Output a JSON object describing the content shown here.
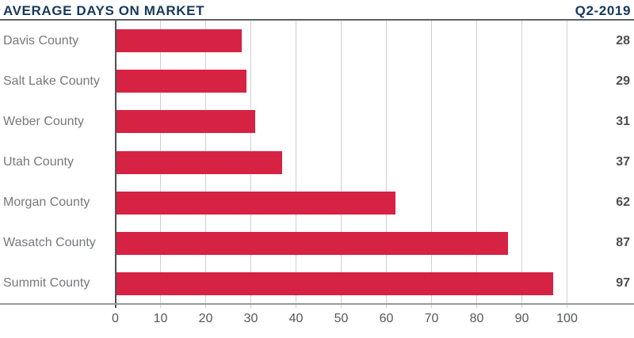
{
  "header": {
    "title": "AVERAGE DAYS ON MARKET",
    "quarter": "Q2-2019"
  },
  "chart_data": {
    "type": "bar",
    "orientation": "horizontal",
    "title": "AVERAGE DAYS ON MARKET",
    "subtitle": "Q2-2019",
    "categories": [
      "Davis County",
      "Salt Lake County",
      "Weber County",
      "Utah County",
      "Morgan County",
      "Wasatch County",
      "Summit County"
    ],
    "values": [
      28,
      29,
      31,
      37,
      62,
      87,
      97
    ],
    "value_labels": [
      "28",
      "29",
      "31",
      "37",
      "62",
      "87",
      "97"
    ],
    "x_ticks": [
      "0",
      "10",
      "20",
      "30",
      "40",
      "50",
      "60",
      "70",
      "80",
      "90",
      "100"
    ],
    "x_tick_values": [
      0,
      10,
      20,
      30,
      40,
      50,
      60,
      70,
      80,
      90,
      100
    ],
    "xlim": [
      0,
      115
    ],
    "xlabel": "",
    "ylabel": "",
    "grid": true,
    "legend": false,
    "colors": {
      "bar": "#d62243",
      "title_navy": "#17395d",
      "category_label": "#77787b",
      "value_label": "#4d4e52",
      "tick_label": "#56575b",
      "gridline": "#cfd0d2",
      "zero_axis": "#4f5154",
      "baseline": "#97999c",
      "header_rule": "#5e6267",
      "background": "#ffffff"
    }
  }
}
